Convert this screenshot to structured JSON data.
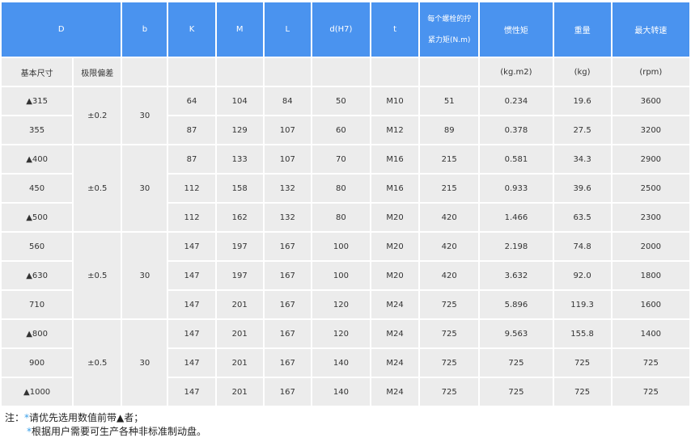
{
  "header": {
    "D": "D",
    "b": "b",
    "K": "K",
    "M": "M",
    "L": "L",
    "d": "d(H7)",
    "t": "t",
    "torque_line1": "每个螺栓的拧",
    "torque_line2": "紧力矩(N.m)",
    "inertia": "惯性矩",
    "weight": "重量",
    "speed": "最大转速"
  },
  "units": {
    "basic_size": "基本尺寸",
    "tolerance": "极限偏差",
    "inertia": "(kg.m2)",
    "weight": "(kg)",
    "speed": "(rpm)"
  },
  "groups": [
    {
      "tolerance": "±0.2",
      "b": "30",
      "span": 2
    },
    {
      "tolerance": "±0.5",
      "b": "30",
      "span": 3
    },
    {
      "tolerance": "±0.5",
      "b": "30",
      "span": 3
    },
    {
      "tolerance": "±0.5",
      "b": "30",
      "span": 3
    }
  ],
  "rows": [
    {
      "D": "▲315",
      "K": "64",
      "M": "104",
      "L": "84",
      "d": "50",
      "t": "M10",
      "torque": "51",
      "inertia": "0.234",
      "weight": "19.6",
      "speed": "3600"
    },
    {
      "D": "355",
      "K": "87",
      "M": "129",
      "L": "107",
      "d": "60",
      "t": "M12",
      "torque": "89",
      "inertia": "0.378",
      "weight": "27.5",
      "speed": "3200"
    },
    {
      "D": "▲400",
      "K": "87",
      "M": "133",
      "L": "107",
      "d": "70",
      "t": "M16",
      "torque": "215",
      "inertia": "0.581",
      "weight": "34.3",
      "speed": "2900"
    },
    {
      "D": "450",
      "K": "112",
      "M": "158",
      "L": "132",
      "d": "80",
      "t": "M16",
      "torque": "215",
      "inertia": "0.933",
      "weight": "39.6",
      "speed": "2500"
    },
    {
      "D": "▲500",
      "K": "112",
      "M": "162",
      "L": "132",
      "d": "80",
      "t": "M20",
      "torque": "420",
      "inertia": "1.466",
      "weight": "63.5",
      "speed": "2300"
    },
    {
      "D": "560",
      "K": "147",
      "M": "197",
      "L": "167",
      "d": "100",
      "t": "M20",
      "torque": "420",
      "inertia": "2.198",
      "weight": "74.8",
      "speed": "2000"
    },
    {
      "D": "▲630",
      "K": "147",
      "M": "197",
      "L": "167",
      "d": "100",
      "t": "M20",
      "torque": "420",
      "inertia": "3.632",
      "weight": "92.0",
      "speed": "1800"
    },
    {
      "D": "710",
      "K": "147",
      "M": "201",
      "L": "167",
      "d": "120",
      "t": "M24",
      "torque": "725",
      "inertia": "5.896",
      "weight": "119.3",
      "speed": "1600"
    },
    {
      "D": "▲800",
      "K": "147",
      "M": "201",
      "L": "167",
      "d": "120",
      "t": "M24",
      "torque": "725",
      "inertia": "9.563",
      "weight": "155.8",
      "speed": "1400"
    },
    {
      "D": "900",
      "K": "147",
      "M": "201",
      "L": "167",
      "d": "140",
      "t": "M24",
      "torque": "725",
      "inertia": "725",
      "weight": "725",
      "speed": "725"
    },
    {
      "D": "▲1000",
      "K": "147",
      "M": "201",
      "L": "167",
      "d": "140",
      "t": "M24",
      "torque": "725",
      "inertia": "725",
      "weight": "725",
      "speed": "725"
    }
  ],
  "notes": {
    "prefix": "注：",
    "bullet": "*",
    "line1": "请优先选用数值前带▲者；",
    "line2": "根据用户需要可生产各种非标准制动盘。"
  },
  "colors": {
    "header_bg": "#4a93ef",
    "cell_bg": "#ececec",
    "bullet": "#3aa0e8"
  }
}
